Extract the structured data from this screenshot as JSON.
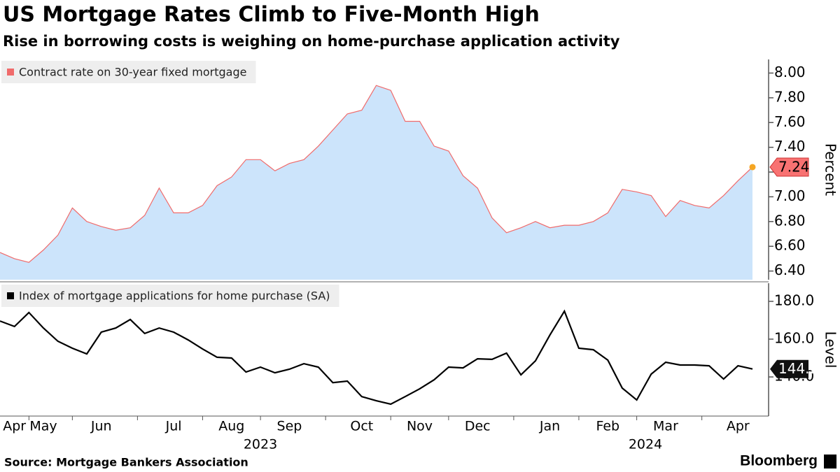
{
  "chart_data": [
    {
      "type": "area",
      "title": "US Mortgage Rates Climb to Five-Month High",
      "subtitle": "Rise in borrowing costs is weighing on home-purchase application activity",
      "categories": [
        null,
        "Apr",
        null,
        "May",
        null,
        null,
        null,
        "Jun",
        null,
        null,
        null,
        null,
        "Jul",
        null,
        null,
        null,
        "Aug",
        null,
        null,
        null,
        "Sep",
        null,
        null,
        null,
        null,
        "Oct",
        null,
        null,
        null,
        "Nov",
        null,
        null,
        null,
        "Dec",
        null,
        null,
        null,
        null,
        "Jan",
        null,
        null,
        null,
        "Feb",
        null,
        null,
        null,
        "Mar",
        null,
        null,
        null,
        null,
        "Apr",
        null
      ],
      "year_labels": [
        "2023",
        "2024"
      ],
      "series": [
        {
          "name": "Contract rate on 30-year fixed mortgage",
          "color": "#f06b6b",
          "fill": "#cce4fb",
          "marker_color": "#f5a623",
          "values": [
            6.55,
            6.5,
            6.47,
            6.57,
            6.69,
            6.91,
            6.8,
            6.76,
            6.73,
            6.75,
            6.85,
            7.07,
            6.87,
            6.87,
            6.93,
            7.09,
            7.16,
            7.3,
            7.3,
            7.21,
            7.27,
            7.3,
            7.41,
            7.54,
            7.67,
            7.7,
            7.9,
            7.86,
            7.61,
            7.61,
            7.41,
            7.37,
            7.17,
            7.07,
            6.83,
            6.71,
            6.75,
            6.8,
            6.75,
            6.77,
            6.77,
            6.8,
            6.87,
            7.06,
            7.04,
            7.01,
            6.84,
            6.97,
            6.93,
            6.91,
            7.01,
            7.13,
            7.24
          ]
        }
      ],
      "ylabel": "Percent",
      "ylim": [
        6.33,
        8.11
      ],
      "yticks": [
        {
          "value": 6.4,
          "label": "6.40"
        },
        {
          "value": 6.6,
          "label": "6.60"
        },
        {
          "value": 6.8,
          "label": "6.80"
        },
        {
          "value": 7.0,
          "label": "7.00"
        },
        {
          "value": 7.2,
          "label": "7.20"
        },
        {
          "value": 7.4,
          "label": "7.40"
        },
        {
          "value": 7.6,
          "label": "7.60"
        },
        {
          "value": 7.8,
          "label": "7.80"
        },
        {
          "value": 8.0,
          "label": "8.00"
        }
      ]
    },
    {
      "type": "line",
      "series": [
        {
          "name": "Index of mortgage applications for home purchase (SA)",
          "color": "#000000",
          "values": [
            169.6,
            166.7,
            174.1,
            165.9,
            158.9,
            155.2,
            152.2,
            163.7,
            165.9,
            170.4,
            163.0,
            165.9,
            163.7,
            159.6,
            154.8,
            150.4,
            150.0,
            142.6,
            145.2,
            142.2,
            144.1,
            147.0,
            145.2,
            137.0,
            137.8,
            129.6,
            127.4,
            125.6,
            129.6,
            133.7,
            138.5,
            145.2,
            144.8,
            149.6,
            149.3,
            152.6,
            141.1,
            148.5,
            162.2,
            174.8,
            155.2,
            154.4,
            148.9,
            134.1,
            127.8,
            141.5,
            147.8,
            146.3,
            146.3,
            145.9,
            138.9,
            145.9,
            144.2
          ]
        }
      ],
      "ylabel": "Level",
      "ylim": [
        119.3,
        189.6
      ],
      "yticks": [
        {
          "value": 140,
          "label": "140.0"
        },
        {
          "value": 160,
          "label": "160.0"
        },
        {
          "value": 180,
          "label": "180.0"
        }
      ]
    }
  ],
  "source": "Source: Mortgage Bankers Association",
  "brand": "Bloomberg"
}
